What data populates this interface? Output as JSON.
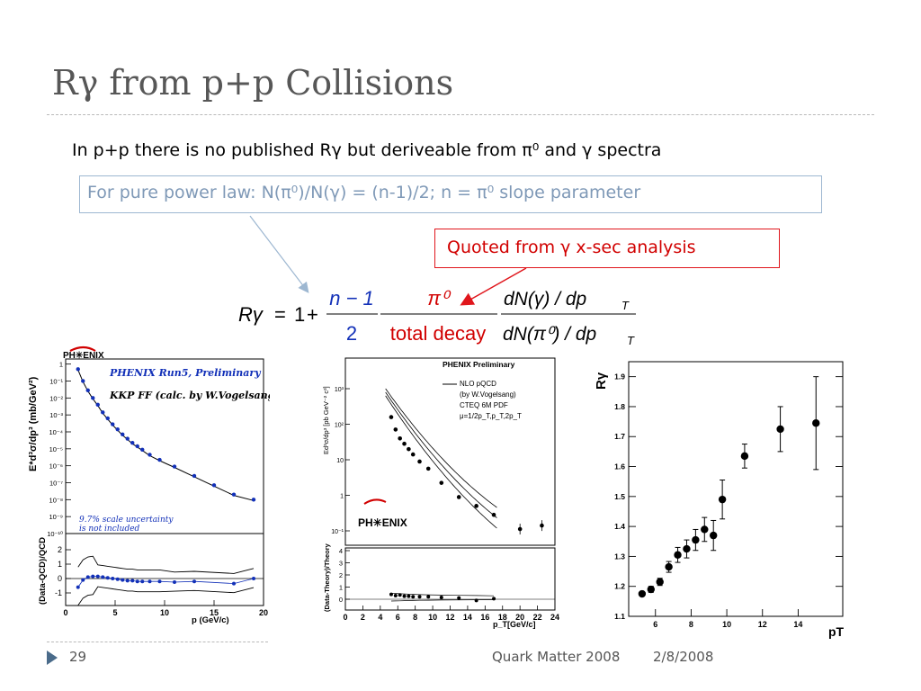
{
  "slide": {
    "title": "Rγ from p+p Collisions",
    "bullet": "In p+p there is no published Rγ but deriveable from π⁰ and γ spectra",
    "box_note": "For pure power law:  N(π⁰)/N(γ) = (n-1)/2; n = π⁰ slope parameter",
    "quote_note": "Quoted from γ x-sec analysis",
    "page_number": "29",
    "footer_conference": "Quark Matter 2008",
    "footer_date": "2/8/2008"
  },
  "formula": {
    "lhs": "Rγ",
    "equals": "=",
    "one": "1",
    "plus": "+",
    "frac1_num": "n − 1",
    "frac1_den": "2",
    "frac2_num": "π⁰",
    "frac2_den": "total decay",
    "frac3_num": "dN(γ) / dp",
    "frac3_den": "dN(π⁰) / dp",
    "subscript": "T"
  },
  "chart_data": [
    {
      "type": "scatter",
      "logo": "PH✳ENIX",
      "legend": [
        "PHENIX Run5, Preliminary",
        "KKP FF (calc. by W.Vogelsang)"
      ],
      "annotation": [
        "9.7% scale uncertainty",
        "is not included"
      ],
      "ylabel_top": "E*d³σ/dp³ (mb/GeV²)",
      "ylabel_bottom": "(Data-QCD)/QCD",
      "xlabel": "p (GeV/c)",
      "y_ticks_log": [
        "1",
        "10⁻¹",
        "10⁻²",
        "10⁻³",
        "10⁻⁴",
        "10⁻⁵",
        "10⁻⁶",
        "10⁻⁷",
        "10⁻⁸",
        "10⁻⁹",
        "10⁻¹⁰"
      ],
      "y_ticks_ratio": [
        "2",
        "1",
        "0",
        "-1"
      ],
      "x_ticks": [
        "0",
        "5",
        "10",
        "15",
        "20"
      ],
      "xlim": [
        0,
        20
      ],
      "ylim_log_exp": [
        -10,
        0.3
      ],
      "data": {
        "x": [
          1.25,
          1.75,
          2.25,
          2.75,
          3.25,
          3.75,
          4.25,
          4.75,
          5.25,
          5.75,
          6.25,
          6.75,
          7.25,
          7.75,
          8.5,
          9.5,
          11,
          13,
          15,
          17,
          19
        ],
        "log10_y": [
          -0.3,
          -1.0,
          -1.55,
          -2.0,
          -2.4,
          -2.85,
          -3.2,
          -3.55,
          -3.85,
          -4.15,
          -4.4,
          -4.65,
          -4.85,
          -5.05,
          -5.35,
          -5.65,
          -6.05,
          -6.6,
          -7.15,
          -7.7,
          -8.0
        ]
      },
      "ratio": {
        "x": [
          1.25,
          1.75,
          2.25,
          2.75,
          3.25,
          3.75,
          4.25,
          4.75,
          5.25,
          5.75,
          6.25,
          6.75,
          7.25,
          7.75,
          8.5,
          9.5,
          11,
          13,
          17,
          19
        ],
        "y": [
          -0.6,
          -0.1,
          0.1,
          0.15,
          0.15,
          0.1,
          0.05,
          0,
          -0.05,
          -0.1,
          -0.15,
          -0.15,
          -0.2,
          -0.2,
          -0.2,
          -0.2,
          -0.25,
          -0.2,
          -0.35,
          0.0
        ]
      }
    },
    {
      "type": "scatter",
      "logo": "PH✳ENIX",
      "legend_title": "PHENIX Preliminary",
      "legend": [
        "NLO pQCD",
        "(by W.Vogelsang)",
        "CTEQ 6M PDF",
        "μ=1/2p_T,p_T,2p_T"
      ],
      "ylabel_top": "Ed³σ/dp³ [pb GeV⁻² c³]",
      "ylabel_bottom": "(Data-Theory)/Theory",
      "xlabel": "p_T[GeV/c]",
      "y_ticks_log": [
        "10³",
        "10²",
        "10",
        "1",
        "10⁻¹"
      ],
      "y_ticks_ratio": [
        "4",
        "3",
        "2",
        "1",
        "0"
      ],
      "x_ticks": [
        "0",
        "2",
        "4",
        "6",
        "8",
        "10",
        "12",
        "14",
        "16",
        "18",
        "20",
        "22",
        "24"
      ],
      "xlim": [
        0,
        24
      ],
      "data": {
        "x": [
          5.25,
          5.75,
          6.25,
          6.75,
          7.25,
          7.75,
          8.5,
          9.5,
          11,
          13,
          15,
          17,
          20,
          22.5
        ],
        "log10_y": [
          2.2,
          1.85,
          1.6,
          1.45,
          1.3,
          1.15,
          0.95,
          0.75,
          0.35,
          -0.05,
          -0.3,
          -0.55,
          -0.95,
          -0.85
        ]
      },
      "ratio": {
        "x": [
          5.25,
          5.75,
          6.25,
          6.75,
          7.25,
          7.75,
          8.5,
          9.5,
          11,
          13,
          15,
          17
        ],
        "y": [
          0.4,
          0.3,
          0.35,
          0.25,
          0.25,
          0.2,
          0.2,
          0.2,
          0.15,
          0.1,
          -0.1,
          0.05
        ]
      }
    },
    {
      "type": "scatter",
      "ylabel": "Rγ",
      "xlabel": "pT",
      "y_ticks": [
        "1.1",
        "1.2",
        "1.3",
        "1.4",
        "1.5",
        "1.6",
        "1.7",
        "1.8",
        "1.9"
      ],
      "x_ticks": [
        "6",
        "8",
        "10",
        "12",
        "14"
      ],
      "xlim": [
        4.5,
        16.5
      ],
      "ylim": [
        1.1,
        1.95
      ],
      "x": [
        5.25,
        5.75,
        6.25,
        6.75,
        7.25,
        7.75,
        8.25,
        8.75,
        9.25,
        9.75,
        11,
        13,
        15
      ],
      "y": [
        1.175,
        1.19,
        1.215,
        1.265,
        1.305,
        1.325,
        1.355,
        1.39,
        1.37,
        1.49,
        1.635,
        1.725,
        1.745
      ],
      "err": [
        0.005,
        0.01,
        0.012,
        0.018,
        0.025,
        0.03,
        0.035,
        0.04,
        0.05,
        0.065,
        0.04,
        0.075,
        0.155
      ]
    }
  ]
}
